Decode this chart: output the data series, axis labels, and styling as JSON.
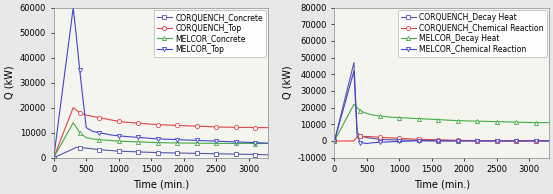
{
  "left": {
    "xlabel": "Time (min.)",
    "ylabel": "Q (kW)",
    "xlim": [
      0,
      3300
    ],
    "ylim": [
      0,
      60000
    ],
    "yticks": [
      0,
      10000,
      20000,
      30000,
      40000,
      50000,
      60000
    ],
    "xticks": [
      0,
      500,
      1000,
      1500,
      2000,
      2500,
      3000
    ],
    "series": [
      {
        "label": "CORQUENCH_Concrete",
        "color": "#5555aa",
        "marker": "s",
        "x": [
          0,
          300,
          350,
          400,
          500,
          600,
          700,
          800,
          900,
          1000,
          1100,
          1200,
          1300,
          1400,
          1500,
          1600,
          1700,
          1800,
          1900,
          2000,
          2100,
          2200,
          2300,
          2400,
          2500,
          2600,
          2700,
          2800,
          2900,
          3000,
          3100,
          3200,
          3300
        ],
        "y": [
          0,
          3500,
          4200,
          4000,
          3800,
          3500,
          3200,
          3000,
          2800,
          2600,
          2500,
          2400,
          2300,
          2200,
          2100,
          2000,
          1950,
          1900,
          1850,
          1800,
          1750,
          1700,
          1650,
          1600,
          1550,
          1500,
          1450,
          1400,
          1350,
          1300,
          1250,
          1200,
          1100
        ]
      },
      {
        "label": "CORQUENCH_Top",
        "color": "#dd4444",
        "marker": "o",
        "x": [
          0,
          300,
          350,
          400,
          500,
          600,
          700,
          800,
          900,
          1000,
          1100,
          1200,
          1300,
          1400,
          1500,
          1600,
          1700,
          1800,
          1900,
          2000,
          2100,
          2200,
          2300,
          2400,
          2500,
          2600,
          2700,
          2800,
          2900,
          3000,
          3100,
          3200,
          3300
        ],
        "y": [
          0,
          20000,
          19000,
          18000,
          17000,
          16500,
          16000,
          15500,
          15000,
          14500,
          14200,
          14000,
          13800,
          13600,
          13400,
          13200,
          13100,
          13000,
          12900,
          12800,
          12700,
          12600,
          12500,
          12400,
          12300,
          12200,
          12200,
          12100,
          12100,
          12100,
          12000,
          12000,
          12000
        ]
      },
      {
        "label": "MELCOR_Concrete",
        "color": "#44aa44",
        "marker": "^",
        "x": [
          0,
          300,
          350,
          400,
          500,
          600,
          700,
          800,
          900,
          1000,
          1100,
          1200,
          1300,
          1400,
          1500,
          1600,
          1700,
          1800,
          1900,
          2000,
          2100,
          2200,
          2300,
          2400,
          2500,
          2600,
          2700,
          2800,
          2900,
          3000,
          3100,
          3200,
          3300
        ],
        "y": [
          0,
          14000,
          12000,
          10000,
          8000,
          7500,
          7200,
          7000,
          6800,
          6600,
          6500,
          6400,
          6300,
          6200,
          6100,
          6000,
          5950,
          5900,
          5900,
          5850,
          5800,
          5800,
          5750,
          5750,
          5700,
          5700,
          5700,
          5700,
          5700,
          5700,
          5650,
          5650,
          5650
        ]
      },
      {
        "label": "MELCOR_Top",
        "color": "#4444cc",
        "marker": "v",
        "x": [
          0,
          300,
          350,
          400,
          500,
          600,
          700,
          800,
          900,
          1000,
          1100,
          1200,
          1300,
          1400,
          1500,
          1600,
          1700,
          1800,
          1900,
          2000,
          2100,
          2200,
          2300,
          2400,
          2500,
          2600,
          2700,
          2800,
          2900,
          3000,
          3100,
          3200,
          3300
        ],
        "y": [
          0,
          60000,
          48000,
          35000,
          12000,
          10500,
          10000,
          9500,
          9000,
          8700,
          8500,
          8300,
          8100,
          7900,
          7700,
          7500,
          7400,
          7300,
          7200,
          7100,
          7000,
          6900,
          6800,
          6700,
          6600,
          6500,
          6400,
          6300,
          6200,
          6100,
          6000,
          5900,
          5800
        ]
      }
    ]
  },
  "right": {
    "xlabel": "Time (min.)",
    "ylabel": "Q (kW)",
    "xlim": [
      0,
      3300
    ],
    "ylim": [
      -10000,
      80000
    ],
    "yticks": [
      -10000,
      0,
      10000,
      20000,
      30000,
      40000,
      50000,
      60000,
      70000,
      80000
    ],
    "xticks": [
      0,
      500,
      1000,
      1500,
      2000,
      2500,
      3000
    ],
    "series": [
      {
        "label": "CORQUENCH_Decay Heat",
        "color": "#5555aa",
        "marker": "s",
        "x": [
          0,
          300,
          350,
          400,
          500,
          600,
          700,
          800,
          900,
          1000,
          1100,
          1200,
          1300,
          1400,
          1500,
          1600,
          1700,
          1800,
          1900,
          2000,
          2100,
          2200,
          2300,
          2400,
          2500,
          2600,
          2700,
          2800,
          2900,
          3000,
          3100,
          3200,
          3300
        ],
        "y": [
          0,
          47000,
          5000,
          3000,
          2000,
          1500,
          1000,
          800,
          700,
          600,
          500,
          400,
          350,
          300,
          250,
          200,
          150,
          100,
          100,
          100,
          100,
          100,
          100,
          100,
          100,
          100,
          100,
          100,
          100,
          100,
          100,
          100,
          100
        ]
      },
      {
        "label": "CORQUENCH_Chemical Reaction",
        "color": "#dd4444",
        "marker": "o",
        "x": [
          0,
          300,
          350,
          400,
          500,
          600,
          700,
          800,
          900,
          1000,
          1100,
          1200,
          1300,
          1400,
          1500,
          1600,
          1700,
          1800,
          1900,
          2000,
          2100,
          2200,
          2300,
          2400,
          2500,
          2600,
          2700,
          2800,
          2900,
          3000,
          3100,
          3200,
          3300
        ],
        "y": [
          0,
          0,
          2500,
          2800,
          2700,
          2500,
          2200,
          2000,
          1800,
          1600,
          1400,
          1200,
          1000,
          900,
          800,
          700,
          600,
          500,
          400,
          350,
          300,
          250,
          200,
          150,
          100,
          100,
          100,
          100,
          100,
          100,
          100,
          100,
          100
        ]
      },
      {
        "label": "MELCOR_Decay Heat",
        "color": "#44aa44",
        "marker": "^",
        "x": [
          0,
          300,
          350,
          400,
          500,
          600,
          700,
          800,
          900,
          1000,
          1100,
          1200,
          1300,
          1400,
          1500,
          1600,
          1700,
          1800,
          1900,
          2000,
          2100,
          2200,
          2300,
          2400,
          2500,
          2600,
          2700,
          2800,
          2900,
          3000,
          3100,
          3200,
          3300
        ],
        "y": [
          0,
          22000,
          20000,
          18000,
          16500,
          15500,
          15000,
          14500,
          14200,
          14000,
          13800,
          13600,
          13400,
          13200,
          13000,
          12800,
          12600,
          12400,
          12200,
          12100,
          12000,
          11900,
          11800,
          11700,
          11600,
          11500,
          11400,
          11300,
          11200,
          11100,
          11000,
          11000,
          11000
        ]
      },
      {
        "label": "MELCOR_Chemical Reaction",
        "color": "#4444cc",
        "marker": "v",
        "x": [
          0,
          300,
          350,
          400,
          500,
          600,
          700,
          800,
          900,
          1000,
          1100,
          1200,
          1300,
          1400,
          1500,
          1600,
          1700,
          1800,
          1900,
          2000,
          2100,
          2200,
          2300,
          2400,
          2500,
          2600,
          2700,
          2800,
          2900,
          3000,
          3100,
          3200,
          3300
        ],
        "y": [
          0,
          42000,
          3000,
          -1000,
          -1500,
          -1000,
          -800,
          -600,
          -400,
          -200,
          -100,
          0,
          100,
          100,
          0,
          0,
          0,
          0,
          0,
          0,
          0,
          0,
          0,
          0,
          0,
          0,
          0,
          0,
          0,
          0,
          0,
          0,
          0
        ]
      }
    ]
  },
  "bg_color": "#e8e8e8",
  "plot_bg": "#f5f5f0",
  "legend_fontsize": 5.5,
  "tick_fontsize": 6,
  "label_fontsize": 7,
  "marker_size": 3,
  "linewidth": 0.8
}
